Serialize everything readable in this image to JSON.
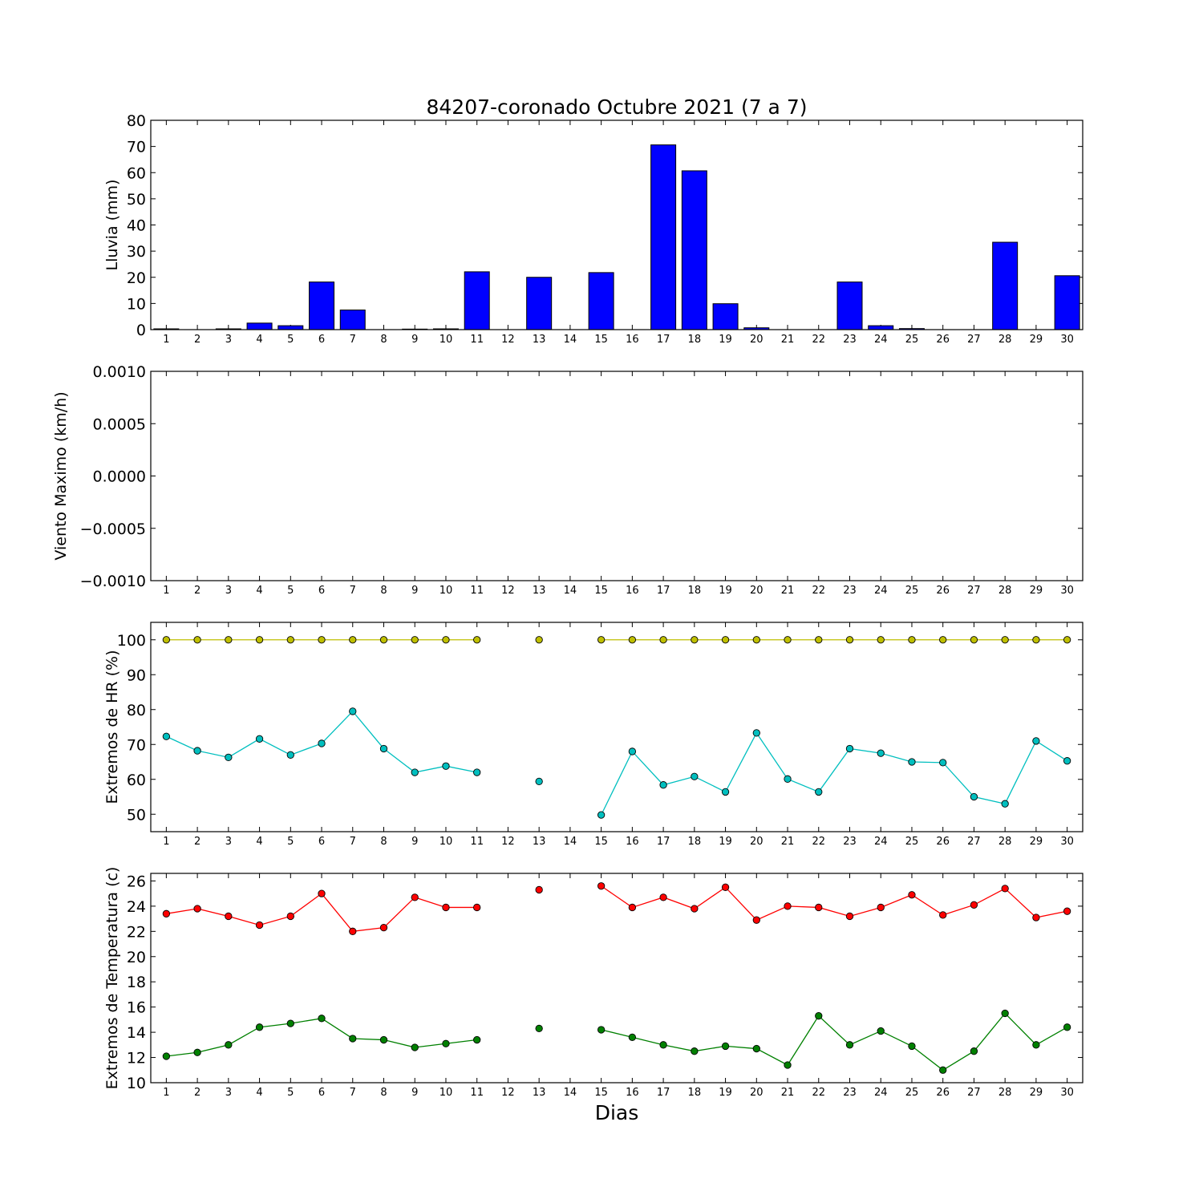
{
  "chart_data": {
    "title": "84207-coronado Octubre 2021  (7 a 7)",
    "xlabel": "Dias",
    "days": [
      1,
      2,
      3,
      4,
      5,
      6,
      7,
      8,
      9,
      10,
      11,
      12,
      13,
      14,
      15,
      16,
      17,
      18,
      19,
      20,
      21,
      22,
      23,
      24,
      25,
      26,
      27,
      28,
      29,
      30
    ],
    "panels": [
      {
        "id": "lluvia",
        "type": "bar",
        "ylabel": "Lluvia (mm)",
        "ylim": [
          0,
          80
        ],
        "yticks": [
          0,
          10,
          20,
          30,
          40,
          50,
          60,
          70,
          80
        ],
        "ytick_labels": [
          "0",
          "10",
          "20",
          "30",
          "40",
          "50",
          "60",
          "70",
          "80"
        ],
        "series": [
          {
            "color": "#0000ff",
            "values": [
              0.3,
              0,
              0.3,
              2.5,
              1.5,
              18.2,
              7.5,
              0,
              0.2,
              0.3,
              22.1,
              0,
              20.0,
              0,
              21.8,
              0,
              70.6,
              60.7,
              9.9,
              0.7,
              0,
              0,
              18.2,
              1.5,
              0.4,
              0,
              0,
              33.4,
              0,
              20.6
            ]
          }
        ]
      },
      {
        "id": "viento",
        "type": "line",
        "ylabel": "Viento Maximo (km/h)",
        "ylim": [
          -0.001,
          0.001
        ],
        "yticks": [
          -0.001,
          -0.0005,
          0,
          0.0005,
          0.001
        ],
        "ytick_labels": [
          "−0.0010",
          "−0.0005",
          "0.0000",
          "0.0005",
          "0.0010"
        ],
        "series": []
      },
      {
        "id": "hr",
        "type": "line",
        "ylabel": "Extremos de HR (%)",
        "ylim": [
          45,
          105
        ],
        "yticks": [
          50,
          60,
          70,
          80,
          90,
          100
        ],
        "ytick_labels": [
          "50",
          "60",
          "70",
          "80",
          "90",
          "100"
        ],
        "series": [
          {
            "color": "#bfbf00",
            "values": [
              100,
              100,
              100,
              100,
              100,
              100,
              100,
              100,
              100,
              100,
              100,
              null,
              100,
              null,
              100,
              100,
              100,
              100,
              100,
              100,
              100,
              100,
              100,
              100,
              100,
              100,
              100,
              100,
              100,
              100
            ]
          },
          {
            "color": "#00bfbf",
            "values": [
              72.3,
              68.2,
              66.3,
              71.6,
              67.0,
              70.3,
              79.5,
              68.8,
              62.0,
              63.8,
              62.0,
              null,
              59.4,
              null,
              49.8,
              68.0,
              58.4,
              60.8,
              56.4,
              73.3,
              60.1,
              56.4,
              68.8,
              67.5,
              65.0,
              64.8,
              55.0,
              53.0,
              71.0,
              65.3
            ]
          }
        ]
      },
      {
        "id": "temp",
        "type": "line",
        "ylabel": "Extremos de Temperatura (c)",
        "ylim": [
          10,
          26.6
        ],
        "yticks": [
          10,
          12,
          14,
          16,
          18,
          20,
          22,
          24,
          26
        ],
        "ytick_labels": [
          "10",
          "12",
          "14",
          "16",
          "18",
          "20",
          "22",
          "24",
          "26"
        ],
        "series": [
          {
            "color": "#ff0000",
            "values": [
              23.4,
              23.8,
              23.2,
              22.5,
              23.2,
              25.0,
              22.0,
              22.3,
              24.7,
              23.9,
              23.9,
              null,
              25.3,
              null,
              25.6,
              23.9,
              24.7,
              23.8,
              25.5,
              22.9,
              24.0,
              23.9,
              23.2,
              23.9,
              24.9,
              23.3,
              24.1,
              25.4,
              23.1,
              23.6
            ]
          },
          {
            "color": "#008000",
            "values": [
              12.1,
              12.4,
              13.0,
              14.4,
              14.7,
              15.1,
              13.5,
              13.4,
              12.8,
              13.1,
              13.4,
              null,
              14.3,
              null,
              14.2,
              13.6,
              13.0,
              12.5,
              12.9,
              12.7,
              11.4,
              15.3,
              13.0,
              14.1,
              12.9,
              11.0,
              12.5,
              15.5,
              13.0,
              14.4
            ]
          }
        ]
      }
    ]
  }
}
